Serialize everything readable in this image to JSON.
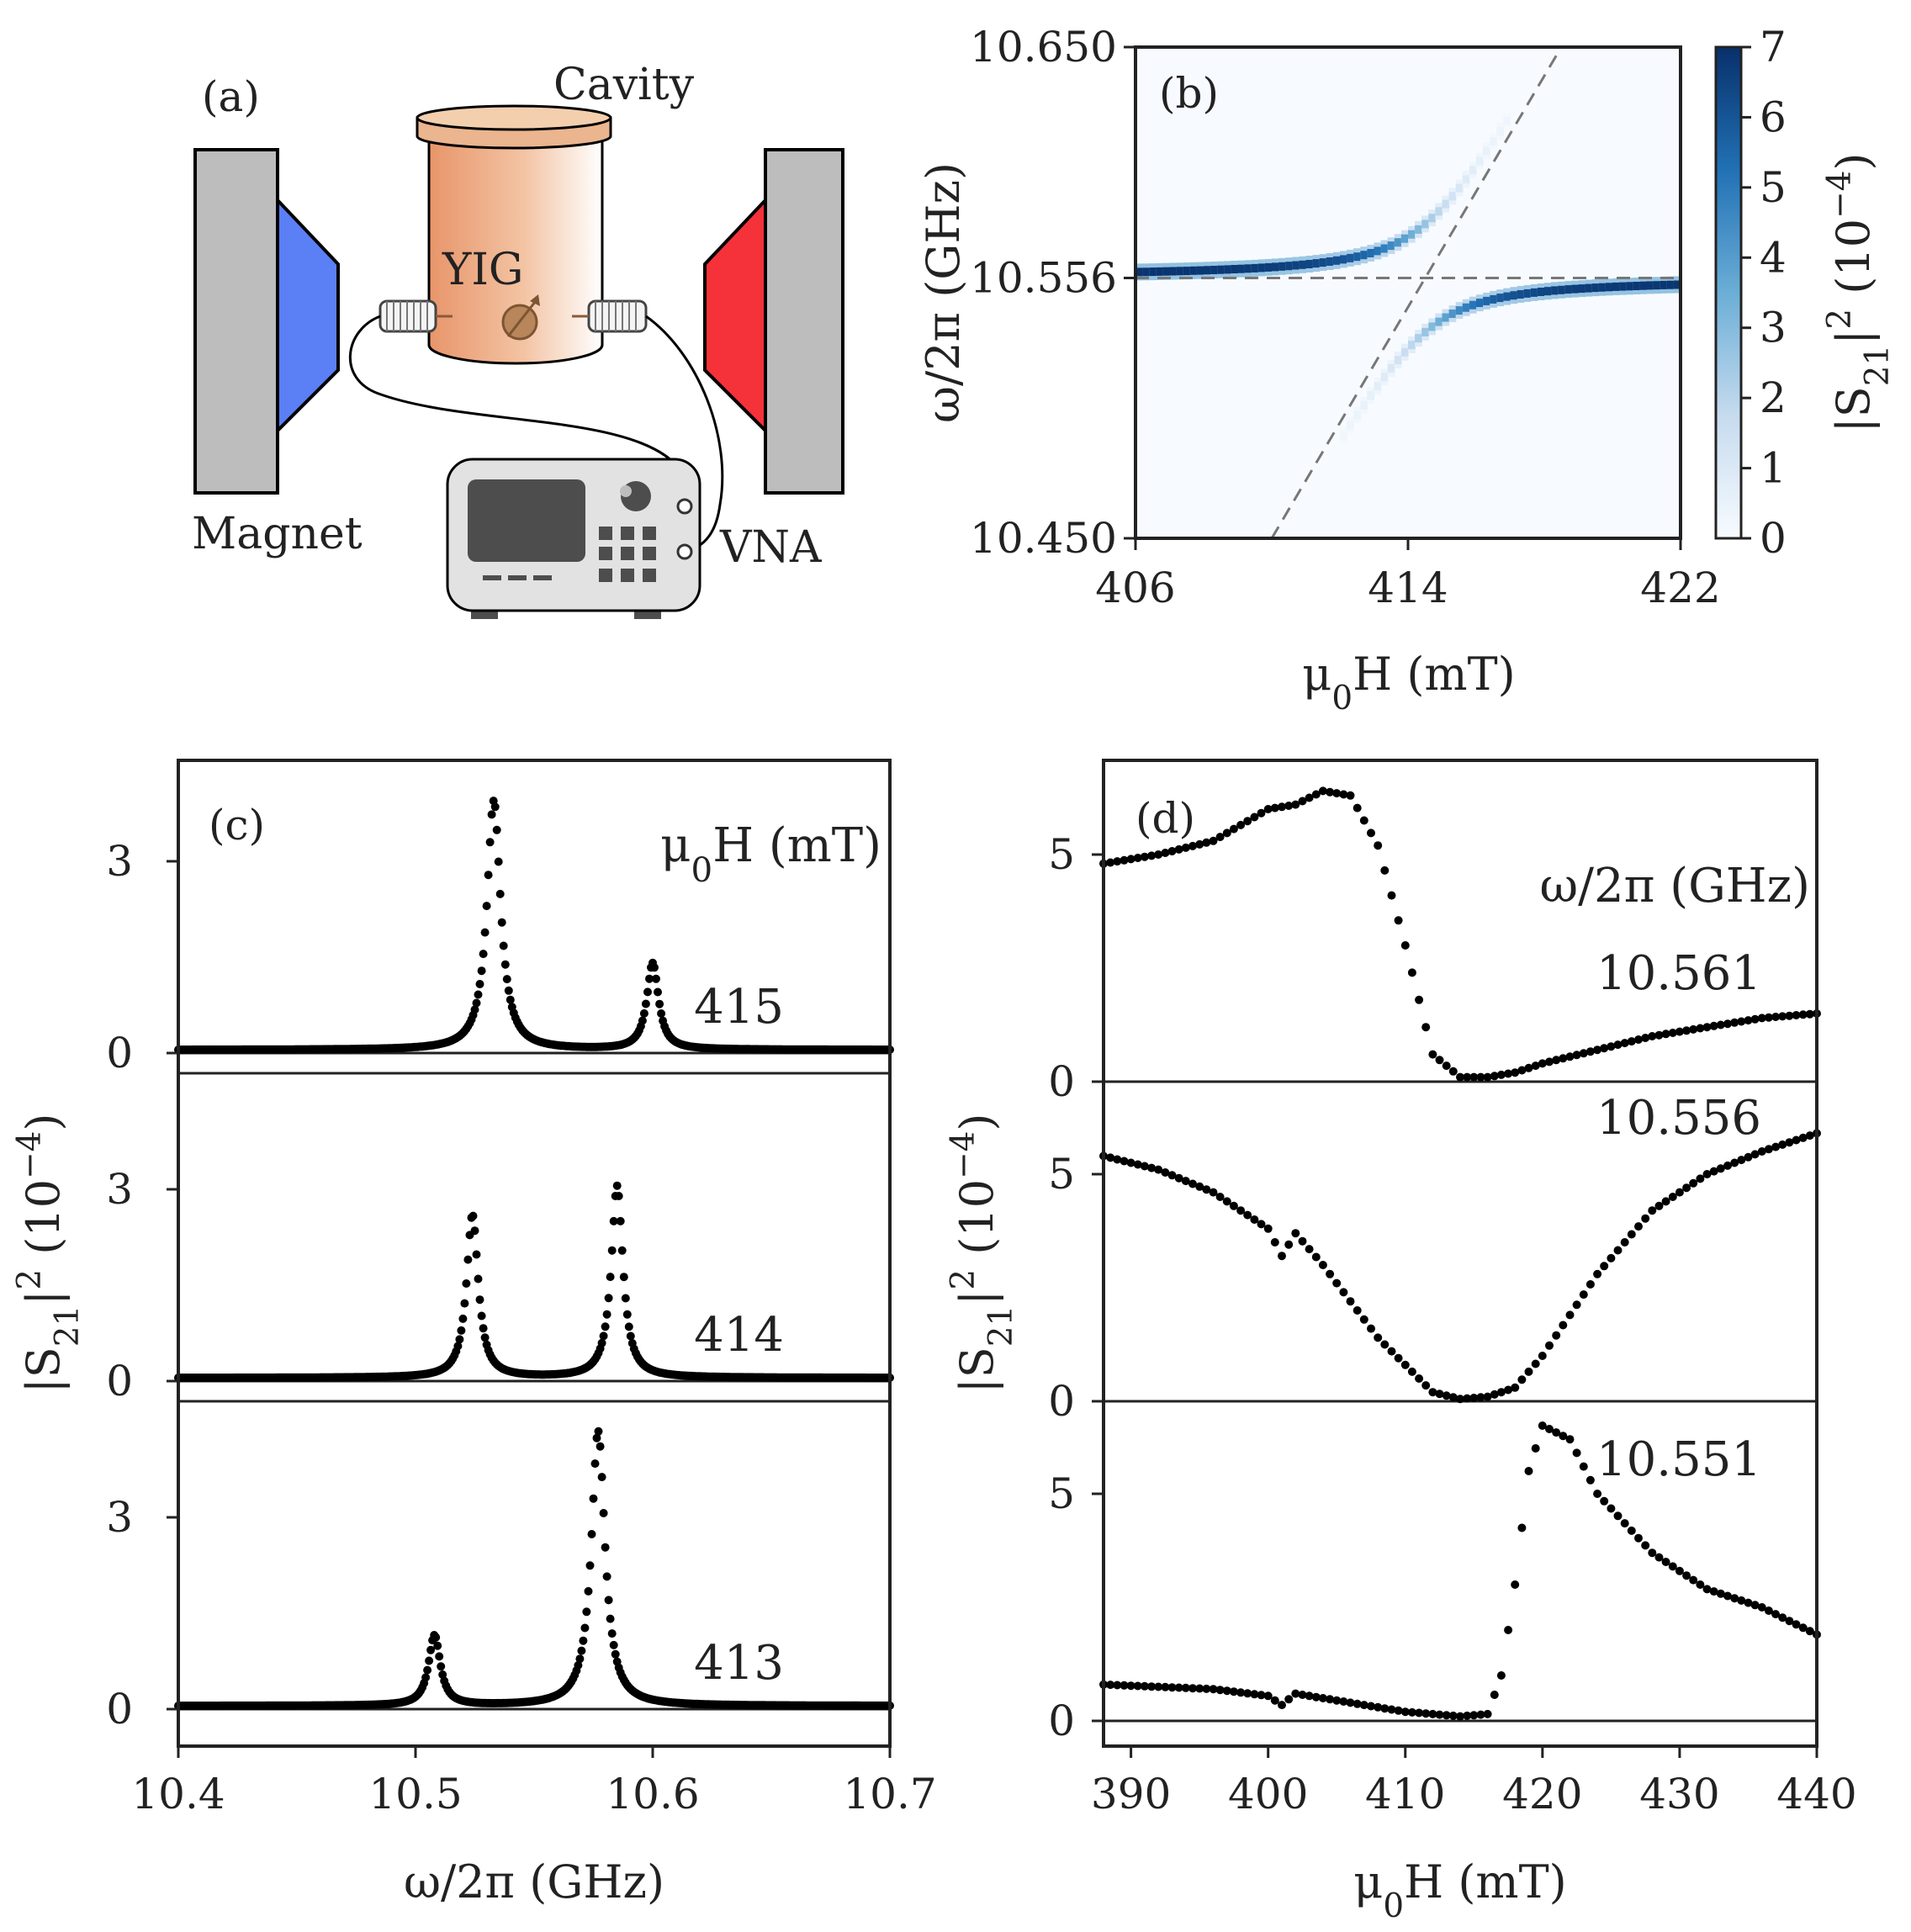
{
  "figure": {
    "panel_a": {
      "panel_label": "(a)",
      "labels": {
        "cavity": "Cavity",
        "yig": "YIG",
        "magnet": "Magnet",
        "vna": "VNA"
      },
      "colors": {
        "magnet_left_pole": "#5b7ff5",
        "magnet_right_pole": "#f5323a",
        "magnet_body": "#bdbdbd",
        "cavity_dark": "#e8956a",
        "cavity_light": "#ffffff",
        "vna_body": "#e2e2e2",
        "vna_screen": "#4d4d4d"
      }
    }
  },
  "chart_data": [
    {
      "id": "b",
      "type": "heatmap",
      "panel_label": "(b)",
      "xlabel": "μ0H (mT)",
      "ylabel": "ω/2π (GHz)",
      "xlim": [
        406,
        422
      ],
      "ylim": [
        10.45,
        10.65
      ],
      "xticks": [
        "406",
        "414",
        "422"
      ],
      "yticks": [
        "10.450",
        "10.556",
        "10.650"
      ],
      "colorbar": {
        "label": "|S21|² (10⁻⁴)",
        "min": 0,
        "max": 7,
        "ticks": [
          "0",
          "1",
          "2",
          "3",
          "4",
          "5",
          "6",
          "7"
        ],
        "colormap": "Blues"
      },
      "cavity_frequency": 10.556,
      "coupling_half_gap": 0.022,
      "magnon_line": {
        "x": [
          410,
          418.5
        ],
        "y": [
          10.45,
          10.65
        ]
      },
      "guide_line_style": "dashed gray"
    },
    {
      "id": "c",
      "type": "scatter",
      "panel_label": "(c)",
      "xlabel": "ω/2π (GHz)",
      "ylabel": "|S21|² (10⁻⁴)",
      "xlim": [
        10.4,
        10.7
      ],
      "xticks": [
        "10.4",
        "10.5",
        "10.6",
        "10.7"
      ],
      "yticks": [
        "0",
        "3"
      ],
      "legend_title": "μ0H (mT)",
      "series": [
        {
          "name": "415",
          "peaks": [
            {
              "x": 10.533,
              "height": 3.9,
              "width": 0.0035
            },
            {
              "x": 10.6,
              "height": 1.35,
              "width": 0.003
            }
          ]
        },
        {
          "name": "414",
          "peaks": [
            {
              "x": 10.524,
              "height": 2.55,
              "width": 0.003
            },
            {
              "x": 10.585,
              "height": 3.0,
              "width": 0.003
            }
          ]
        },
        {
          "name": "413",
          "peaks": [
            {
              "x": 10.508,
              "height": 1.1,
              "width": 0.003
            },
            {
              "x": 10.577,
              "height": 4.3,
              "width": 0.0035
            }
          ]
        }
      ]
    },
    {
      "id": "d",
      "type": "scatter",
      "panel_label": "(d)",
      "xlabel": "μ0H (mT)",
      "ylabel": "|S21|² (10⁻⁴)",
      "xlim": [
        388,
        440
      ],
      "xticks": [
        "390",
        "400",
        "410",
        "420",
        "430",
        "440"
      ],
      "yticks": [
        "0",
        "5"
      ],
      "legend_title": "ω/2π (GHz)",
      "series": [
        {
          "name": "10.561",
          "x": [
            388,
            392,
            396,
            400,
            402,
            404,
            406,
            408,
            410,
            412,
            414,
            416,
            418,
            420,
            424,
            428,
            432,
            436,
            440
          ],
          "y": [
            4.8,
            5.0,
            5.3,
            6.0,
            6.1,
            6.4,
            6.3,
            5.2,
            3.0,
            0.6,
            0.1,
            0.1,
            0.2,
            0.4,
            0.7,
            1.0,
            1.2,
            1.4,
            1.5
          ]
        },
        {
          "name": "10.556",
          "x": [
            388,
            392,
            396,
            400,
            401,
            402,
            404,
            408,
            412,
            414,
            416,
            418,
            420,
            424,
            428,
            432,
            436,
            440
          ],
          "y": [
            5.4,
            5.1,
            4.6,
            3.8,
            3.2,
            3.7,
            3.0,
            1.4,
            0.2,
            0.05,
            0.1,
            0.3,
            1.0,
            2.8,
            4.2,
            5.0,
            5.5,
            5.9
          ]
        },
        {
          "name": "10.551",
          "x": [
            388,
            392,
            396,
            400,
            401,
            402,
            406,
            410,
            414,
            416,
            417,
            418,
            419,
            420,
            422,
            424,
            428,
            432,
            436,
            440
          ],
          "y": [
            0.8,
            0.75,
            0.7,
            0.55,
            0.35,
            0.6,
            0.4,
            0.2,
            0.1,
            0.15,
            1.0,
            3.0,
            5.5,
            6.5,
            6.2,
            5.0,
            3.7,
            2.9,
            2.5,
            1.9
          ]
        }
      ]
    }
  ]
}
